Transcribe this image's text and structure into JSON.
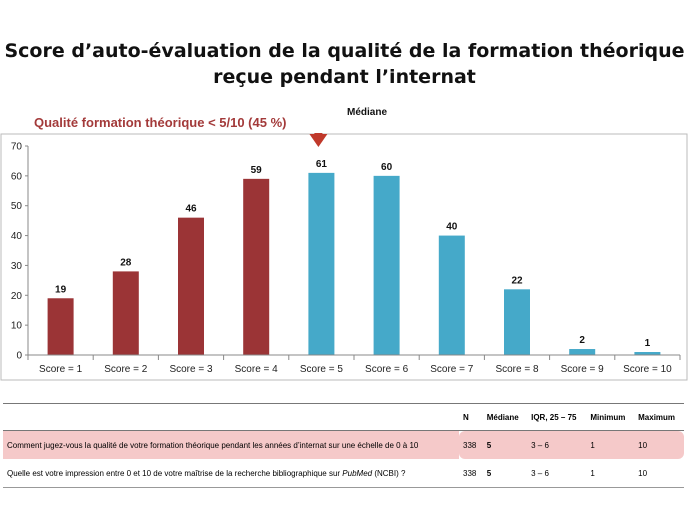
{
  "title_line1": "Score d’auto-évaluation de la qualité de la formation théorique",
  "title_line2": "reçue pendant l’internat",
  "subtitle": "Qualité  formation théorique  < 5/10 (45 %)",
  "median_label": "Médiane",
  "colors": {
    "low": "#9b3436",
    "high": "#45a9c9",
    "arrow": "#c0392b",
    "highlight": "#f5c9c9"
  },
  "chart_data": {
    "type": "bar",
    "categories": [
      "Score = 1",
      "Score = 2",
      "Score = 3",
      "Score = 4",
      "Score = 5",
      "Score = 6",
      "Score = 7",
      "Score = 8",
      "Score = 9",
      "Score = 10"
    ],
    "values": [
      19,
      28,
      46,
      59,
      61,
      60,
      40,
      22,
      2,
      1
    ],
    "ylim": [
      0,
      70
    ],
    "yticks": [
      0,
      10,
      20,
      30,
      40,
      50,
      60,
      70
    ],
    "low_count": 4,
    "median_category": "Score = 5",
    "grid": false
  },
  "table": {
    "headers": [
      "",
      "N",
      "Médiane",
      "IQR, 25 – 75",
      "Minimum",
      "Maximum"
    ],
    "rows": [
      {
        "question": "Comment jugez-vous la qualité de votre formation théorique pendant les années d’internat sur une échelle de 0 à 10",
        "n": "338",
        "mediane": "5",
        "iqr": "3 – 6",
        "min": "1",
        "max": "10"
      },
      {
        "question_pre": "Quelle est votre impression entre 0 et 10 de votre maîtrise de la recherche bibliographique sur ",
        "question_em": "PubMed",
        "question_post": " (NCBI) ?",
        "n": "338",
        "mediane": "5",
        "iqr": "3 – 6",
        "min": "1",
        "max": "10"
      }
    ]
  }
}
